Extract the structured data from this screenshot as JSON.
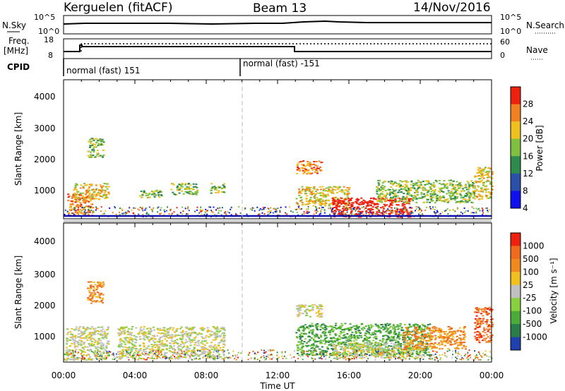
{
  "header": {
    "station": "Kerguelen (fitACF)",
    "beam": "Beam 13",
    "date": "14/Nov/2016"
  },
  "noise_panel": {
    "left_label": "N.Sky",
    "right_label": "N.Search",
    "left_ticks": [
      "10^5",
      "10^0"
    ],
    "right_ticks": [
      "10^5",
      "10^0"
    ]
  },
  "freq_panel": {
    "left_label_line1": "Freq.",
    "left_label_line2": "[MHz]",
    "right_label": "Nave",
    "left_ticks": [
      "18",
      "8"
    ],
    "right_ticks": [
      "60",
      "0"
    ]
  },
  "cpid_panel": {
    "label": "CPID",
    "segments": [
      "normal (fast) 151",
      "normal (fast) -151"
    ]
  },
  "x_axis": {
    "label": "Time UT",
    "ticks": [
      "00:00",
      "04:00",
      "08:00",
      "12:00",
      "16:00",
      "20:00",
      "00:00"
    ]
  },
  "chart_data": [
    {
      "type": "heatmap",
      "title": "Power",
      "xlabel": "Time UT",
      "ylabel": "Slant Range [km]",
      "xlim_hours": [
        0,
        24
      ],
      "ylim_km": [
        180,
        4500
      ],
      "y_ticks": [
        "1000",
        "2000",
        "3000",
        "4000"
      ],
      "colorbar": {
        "label": "Power [dB]",
        "ticks": [
          "4",
          "8",
          "12",
          "16",
          "20",
          "24",
          "28"
        ],
        "colors": [
          "#1010ee",
          "#2a50a8",
          "#2f8a4e",
          "#80c040",
          "#eec020",
          "#f08020",
          "#ee2010"
        ]
      },
      "echo_regions": [
        {
          "t0": 0.2,
          "t1": 1.6,
          "r0": 300,
          "r1": 1000,
          "level": 5
        },
        {
          "t0": 0.5,
          "t1": 2.5,
          "r0": 800,
          "r1": 1300,
          "level": 4
        },
        {
          "t0": 1.3,
          "t1": 2.2,
          "r0": 2100,
          "r1": 2700,
          "level": 3
        },
        {
          "t0": 4.2,
          "t1": 5.5,
          "r0": 850,
          "r1": 1100,
          "level": 3
        },
        {
          "t0": 6.0,
          "t1": 7.5,
          "r0": 950,
          "r1": 1300,
          "level": 3
        },
        {
          "t0": 8.2,
          "t1": 9.0,
          "r0": 1000,
          "r1": 1300,
          "level": 3
        },
        {
          "t0": 13.0,
          "t1": 14.5,
          "r0": 1600,
          "r1": 2000,
          "level": 5
        },
        {
          "t0": 13.0,
          "t1": 16.0,
          "r0": 600,
          "r1": 1200,
          "level": 4
        },
        {
          "t0": 15.0,
          "t1": 19.5,
          "r0": 250,
          "r1": 850,
          "level": 7
        },
        {
          "t0": 17.5,
          "t1": 23.0,
          "r0": 700,
          "r1": 1400,
          "level": 3
        },
        {
          "t0": 23.0,
          "t1": 24.0,
          "r0": 800,
          "r1": 1800,
          "level": 4
        }
      ]
    },
    {
      "type": "heatmap",
      "title": "Velocity",
      "xlabel": "Time UT",
      "ylabel": "Slant Range [km]",
      "xlim_hours": [
        0,
        24
      ],
      "ylim_km": [
        180,
        4500
      ],
      "y_ticks": [
        "1000",
        "2000",
        "3000",
        "4000"
      ],
      "colorbar": {
        "label": "Velocity [m s⁻¹]",
        "ticks": [
          "1000",
          "500",
          "100",
          "25",
          "-25",
          "-100",
          "-500",
          "-1000"
        ],
        "colors": [
          "#2040b0",
          "#2a7d4a",
          "#4aaa3a",
          "#88d040",
          "#c0c0c0",
          "#f0c020",
          "#f08a20",
          "#f06a20",
          "#ee2010"
        ]
      },
      "echo_regions": [
        {
          "t0": 0.1,
          "t1": 2.5,
          "r0": 250,
          "r1": 1300,
          "level": 4
        },
        {
          "t0": 1.3,
          "t1": 2.2,
          "r0": 2000,
          "r1": 2700,
          "level": 6
        },
        {
          "t0": 3.0,
          "t1": 9.0,
          "r0": 300,
          "r1": 1300,
          "level": 4
        },
        {
          "t0": 13.0,
          "t1": 14.5,
          "r0": 1600,
          "r1": 2000,
          "level": 4
        },
        {
          "t0": 13.0,
          "t1": 20.5,
          "r0": 400,
          "r1": 1400,
          "level": 2
        },
        {
          "t0": 15.0,
          "t1": 20.0,
          "r0": 300,
          "r1": 800,
          "level": 4
        },
        {
          "t0": 19.0,
          "t1": 22.5,
          "r0": 600,
          "r1": 1300,
          "level": 6
        },
        {
          "t0": 23.0,
          "t1": 24.0,
          "r0": 800,
          "r1": 1900,
          "level": 7
        }
      ]
    }
  ]
}
